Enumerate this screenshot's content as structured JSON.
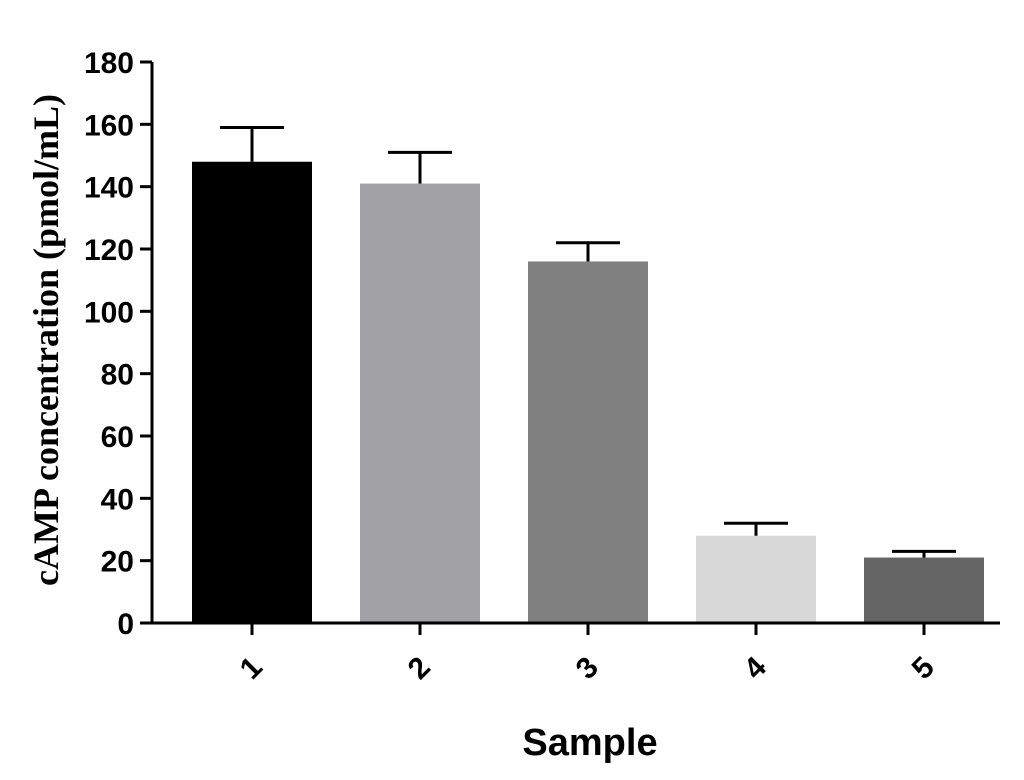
{
  "chart_data": {
    "type": "bar",
    "categories": [
      "1",
      "2",
      "3",
      "4",
      "5"
    ],
    "values": [
      148,
      141,
      116,
      28,
      21
    ],
    "errors": [
      11,
      10,
      6,
      4,
      2
    ],
    "colors": [
      "#000000",
      "#a2a1a6",
      "#808080",
      "#d8d8d8",
      "#646464"
    ],
    "xlabel": "Sample",
    "ylabel": "cAMP concentration (pmol/mL)",
    "ylim": [
      0,
      180
    ],
    "yticks": [
      0,
      20,
      40,
      60,
      80,
      100,
      120,
      140,
      160,
      180
    ],
    "grid": false
  }
}
